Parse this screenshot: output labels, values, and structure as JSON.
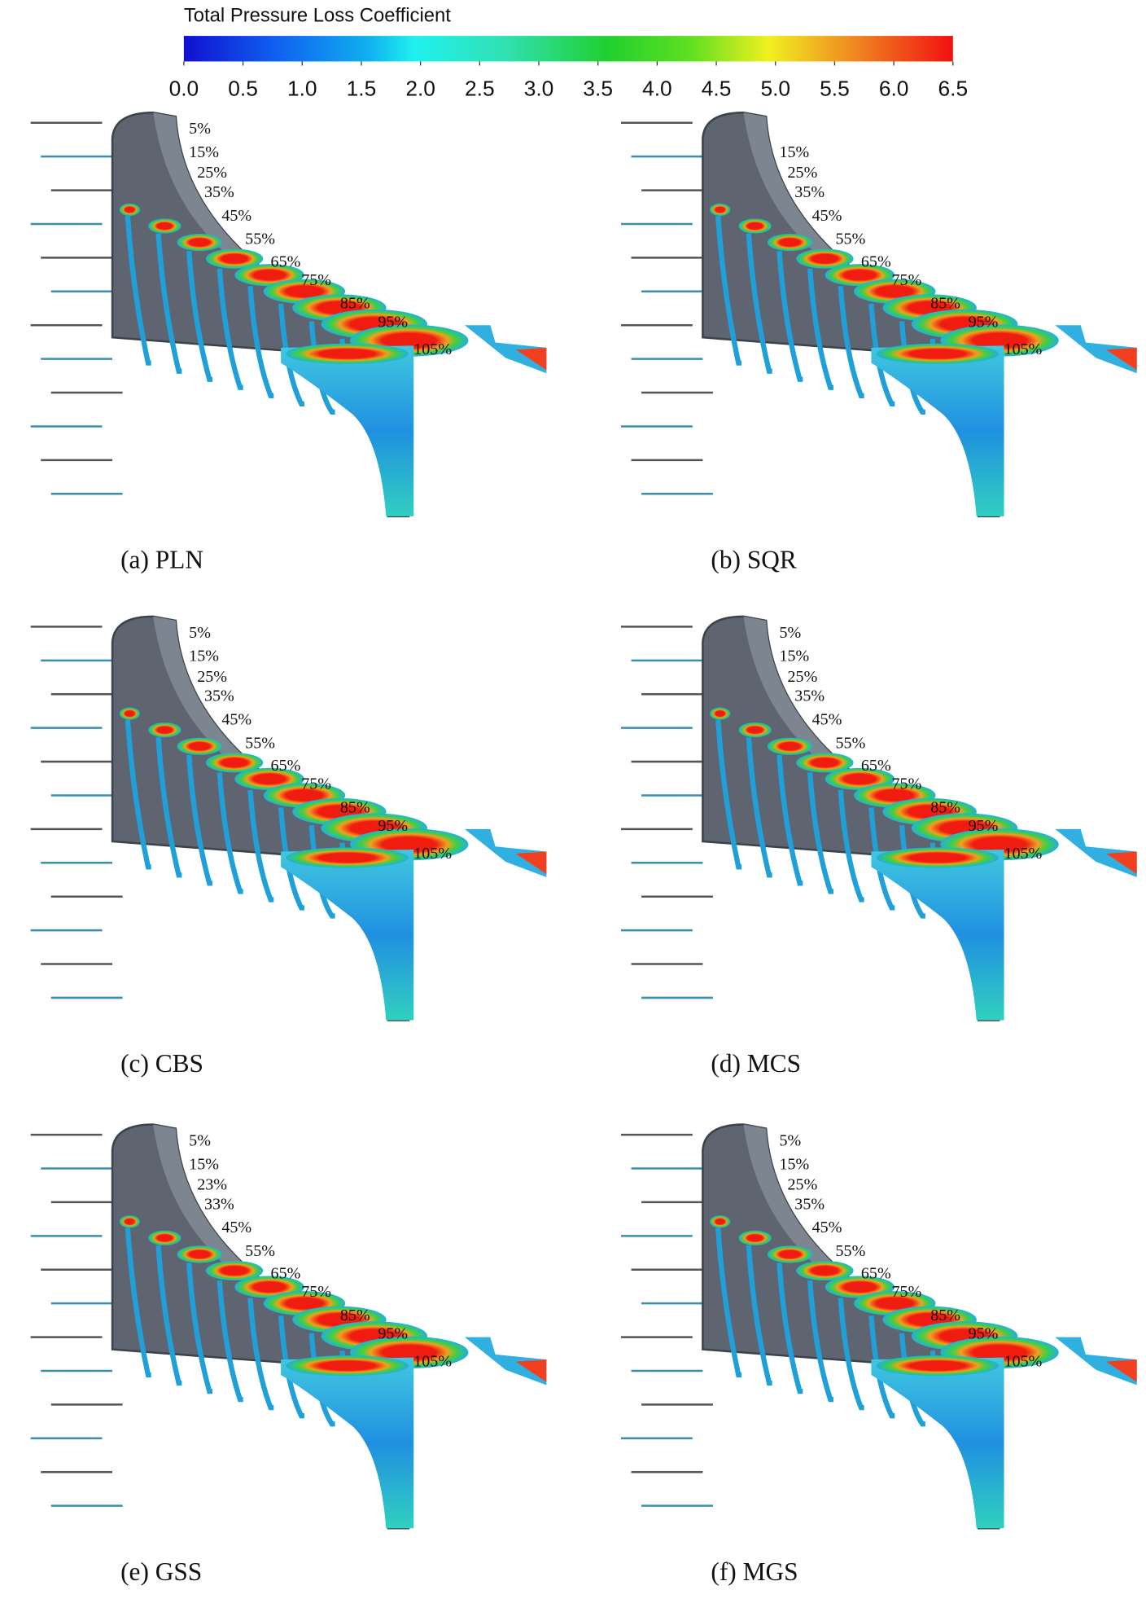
{
  "colorbar": {
    "title": "Total Pressure Loss Coefficient",
    "ticks": [
      {
        "value": 0,
        "label": "0.0"
      },
      {
        "value": 0.5,
        "label": "0.5"
      },
      {
        "value": 1,
        "label": "1.0"
      },
      {
        "value": 1.5,
        "label": "1.5"
      },
      {
        "value": 2,
        "label": "2.0"
      },
      {
        "value": 2.5,
        "label": "2.5"
      },
      {
        "value": 3,
        "label": "3.0"
      },
      {
        "value": 3.5,
        "label": "3.5"
      },
      {
        "value": 4,
        "label": "4.0"
      },
      {
        "value": 4.5,
        "label": "4.5"
      },
      {
        "value": 5,
        "label": "5.0"
      },
      {
        "value": 5.5,
        "label": "5.5"
      },
      {
        "value": 6,
        "label": "6.0"
      },
      {
        "value": 6.5,
        "label": "6.5"
      }
    ]
  },
  "panels": [
    {
      "caption": "(a) PLN",
      "labels": [
        "5%",
        "15%",
        "25%",
        "35%",
        "45%",
        "55%",
        "65%",
        "75%",
        "85%",
        "95%",
        "105%"
      ]
    },
    {
      "caption": "(b) SQR",
      "labels": [
        "15%",
        "25%",
        "35%",
        "45%",
        "55%",
        "65%",
        "75%",
        "85%",
        "95%",
        "105%"
      ]
    },
    {
      "caption": "(c) CBS",
      "labels": [
        "5%",
        "15%",
        "25%",
        "35%",
        "45%",
        "55%",
        "65%",
        "75%",
        "85%",
        "95%",
        "105%"
      ]
    },
    {
      "caption": "(d) MCS",
      "labels": [
        "5%",
        "15%",
        "25%",
        "35%",
        "45%",
        "55%",
        "65%",
        "75%",
        "85%",
        "95%",
        "105%"
      ]
    },
    {
      "caption": "(e) GSS",
      "labels": [
        "5%",
        "15%",
        "23%",
        "33%",
        "45%",
        "55%",
        "65%",
        "75%",
        "85%",
        "95%",
        "105%"
      ]
    },
    {
      "caption": "(f) MGS",
      "labels": [
        "5%",
        "15%",
        "25%",
        "35%",
        "45%",
        "55%",
        "65%",
        "75%",
        "85%",
        "95%",
        "105%"
      ]
    }
  ]
}
